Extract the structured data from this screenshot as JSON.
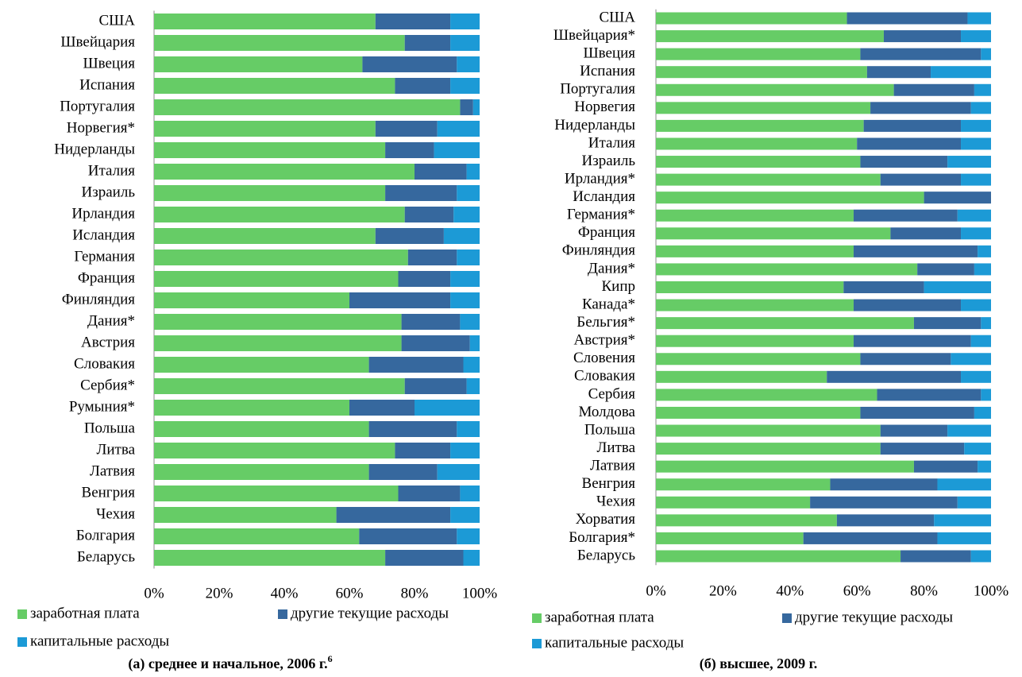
{
  "chart_data": [
    {
      "type": "stacked-bar-horizontal",
      "title": "(а) среднее и начальное, 2006 г.",
      "title_footnote": "6",
      "categories": [
        "США",
        "Швейцария",
        "Швеция",
        "Испания",
        "Португалия",
        "Норвегия*",
        "Нидерланды",
        "Италия",
        "Израиль",
        "Ирландия",
        "Исландия",
        "Германия",
        "Франция",
        "Финляндия",
        "Дания*",
        "Австрия",
        "Словакия",
        "Сербия*",
        "Румыния*",
        "Польша",
        "Литва",
        "Латвия",
        "Венгрия",
        "Чехия",
        "Болгария",
        "Беларусь"
      ],
      "series": [
        {
          "name": "заработная плата",
          "color": "#66cc66",
          "values": [
            68,
            77,
            64,
            74,
            94,
            68,
            71,
            80,
            71,
            77,
            68,
            78,
            75,
            60,
            76,
            76,
            66,
            77,
            60,
            66,
            74,
            66,
            75,
            56,
            63,
            71
          ]
        },
        {
          "name": "другие текущие расходы",
          "color": "#36689e",
          "values": [
            23,
            14,
            29,
            17,
            4,
            19,
            15,
            16,
            22,
            15,
            21,
            15,
            16,
            31,
            18,
            21,
            29,
            19,
            20,
            27,
            17,
            21,
            19,
            35,
            30,
            24
          ]
        },
        {
          "name": "капитальные расходы",
          "color": "#1c9ad6",
          "values": [
            9,
            9,
            7,
            9,
            2,
            13,
            14,
            4,
            7,
            8,
            11,
            7,
            9,
            9,
            6,
            3,
            5,
            4,
            20,
            7,
            9,
            13,
            6,
            9,
            7,
            5
          ]
        }
      ],
      "xlim": [
        0,
        100
      ],
      "xticks": [
        {
          "value": 0,
          "label": "0%"
        },
        {
          "value": 20,
          "label": "20%"
        },
        {
          "value": 40,
          "label": "40%"
        },
        {
          "value": 60,
          "label": "60%"
        },
        {
          "value": 80,
          "label": "80%"
        },
        {
          "value": 100,
          "label": "100%"
        }
      ]
    },
    {
      "type": "stacked-bar-horizontal",
      "title": "(б) высшее, 2009 г.",
      "categories": [
        "США",
        "Швейцария*",
        "Швеция",
        "Испания",
        "Португалия",
        "Норвегия",
        "Нидерланды",
        "Италия",
        "Израиль",
        "Ирландия*",
        "Исландия",
        "Германия*",
        "Франция",
        "Финляндия",
        "Дания*",
        "Кипр",
        "Канада*",
        "Бельгия*",
        "Австрия*",
        "Словения",
        "Словакия",
        "Сербия",
        "Молдова",
        "Польша",
        "Литва",
        "Латвия",
        "Венгрия",
        "Чехия",
        "Хорватия",
        "Болгария*",
        "Беларусь"
      ],
      "series": [
        {
          "name": "заработная плата",
          "color": "#66cc66",
          "values": [
            57,
            68,
            61,
            63,
            71,
            64,
            62,
            60,
            61,
            67,
            80,
            59,
            70,
            59,
            78,
            56,
            59,
            77,
            59,
            61,
            51,
            66,
            61,
            67,
            67,
            77,
            52,
            46,
            54,
            44,
            73
          ]
        },
        {
          "name": "другие текущие расходы",
          "color": "#36689e",
          "values": [
            36,
            23,
            36,
            19,
            24,
            30,
            29,
            31,
            26,
            24,
            20,
            31,
            21,
            37,
            17,
            24,
            32,
            20,
            35,
            27,
            40,
            31,
            34,
            20,
            25,
            19,
            32,
            44,
            29,
            40,
            21
          ]
        },
        {
          "name": "капитальные расходы",
          "color": "#1c9ad6",
          "values": [
            7,
            9,
            3,
            18,
            5,
            6,
            9,
            9,
            13,
            9,
            0,
            10,
            9,
            4,
            5,
            20,
            9,
            3,
            6,
            12,
            9,
            3,
            5,
            13,
            8,
            4,
            16,
            10,
            17,
            16,
            6
          ]
        }
      ],
      "xlim": [
        0,
        100
      ],
      "xticks": [
        {
          "value": 0,
          "label": "0%"
        },
        {
          "value": 20,
          "label": "20%"
        },
        {
          "value": 40,
          "label": "40%"
        },
        {
          "value": 60,
          "label": "60%"
        },
        {
          "value": 80,
          "label": "80%"
        },
        {
          "value": 100,
          "label": "100%"
        }
      ]
    }
  ]
}
